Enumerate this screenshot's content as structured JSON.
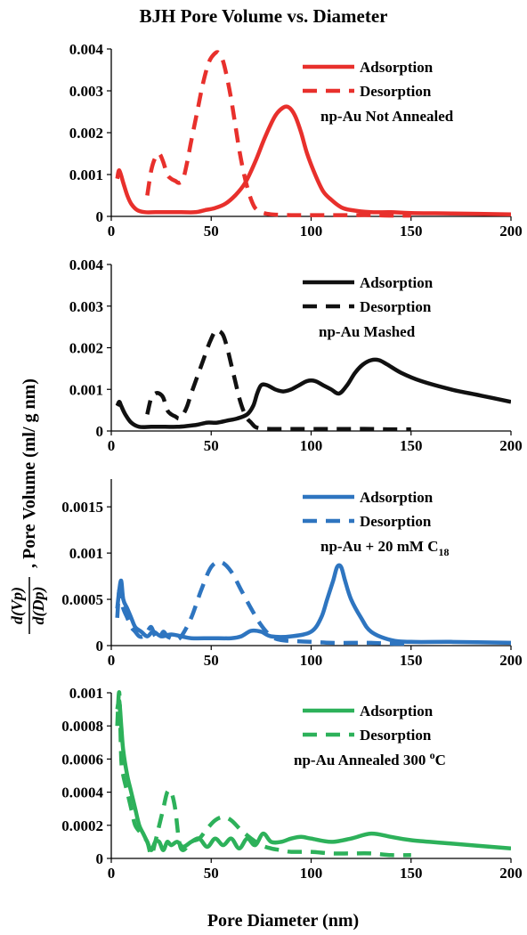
{
  "figure": {
    "title": "BJH Pore Volume vs. Diameter",
    "xlabel": "Pore Diameter (nm)",
    "ylabel_frac_num": "d(Vp)",
    "ylabel_frac_den": "d(Dp)",
    "ylabel_rest": ", Pore Volume (ml/ g nm)"
  },
  "chart_data": [
    {
      "type": "line",
      "annotation": "np-Au Not Annealed",
      "color": "#e8302c",
      "xlim": [
        0,
        200
      ],
      "ylim": [
        0,
        0.004
      ],
      "xticks": [
        0,
        50,
        100,
        150,
        200
      ],
      "yticks": [
        0,
        0.001,
        0.002,
        0.003,
        0.004
      ],
      "ytick_labels": [
        "0",
        "0.001",
        "0.002",
        "0.003",
        "0.004"
      ],
      "legend_position": "top-right",
      "series": [
        {
          "name": "Adsorption",
          "style": "solid",
          "x": [
            3,
            4,
            6,
            8,
            10,
            13,
            17,
            22,
            28,
            35,
            42,
            47,
            52,
            57,
            62,
            67,
            72,
            77,
            82,
            86,
            89,
            92,
            95,
            98,
            102,
            106,
            110,
            115,
            120,
            130,
            140,
            150,
            170,
            200
          ],
          "y": [
            0.0009,
            0.0011,
            0.0008,
            0.0005,
            0.0003,
            0.00015,
            0.0001,
            0.0001,
            0.0001,
            0.0001,
            0.0001,
            0.00015,
            0.0002,
            0.0003,
            0.0005,
            0.0008,
            0.0013,
            0.0019,
            0.0024,
            0.0026,
            0.0026,
            0.0024,
            0.002,
            0.0015,
            0.001,
            0.0006,
            0.0004,
            0.00022,
            0.00015,
            0.0001,
            0.0001,
            8e-05,
            7e-05,
            5e-05
          ]
        },
        {
          "name": "Desorption",
          "style": "dashed",
          "x": [
            18,
            20,
            22,
            24,
            26,
            28,
            30,
            32,
            34,
            36,
            38,
            40,
            43,
            46,
            49,
            52,
            54,
            56,
            58,
            60,
            62,
            64,
            66,
            68,
            70,
            72,
            75,
            80,
            90,
            100,
            110,
            120,
            130,
            140,
            150
          ],
          "y": [
            0.0005,
            0.0011,
            0.0014,
            0.0015,
            0.0013,
            0.001,
            0.0009,
            0.00085,
            0.0008,
            0.0009,
            0.0013,
            0.0018,
            0.0025,
            0.0032,
            0.0037,
            0.0039,
            0.0039,
            0.0037,
            0.0033,
            0.0028,
            0.0022,
            0.0016,
            0.0011,
            0.0007,
            0.0004,
            0.0002,
            0.0001,
            5e-05,
            3e-05,
            3e-05,
            3e-05,
            3e-05,
            3e-05,
            2e-05,
            2e-05
          ]
        }
      ]
    },
    {
      "type": "line",
      "annotation": "np-Au Mashed",
      "color": "#111111",
      "xlim": [
        0,
        200
      ],
      "ylim": [
        0,
        0.004
      ],
      "xticks": [
        0,
        50,
        100,
        150,
        200
      ],
      "yticks": [
        0,
        0.001,
        0.002,
        0.003,
        0.004
      ],
      "ytick_labels": [
        "0",
        "0.001",
        "0.002",
        "0.003",
        "0.004"
      ],
      "legend_position": "top-right",
      "series": [
        {
          "name": "Adsorption",
          "style": "solid",
          "x": [
            3,
            4,
            5,
            7,
            10,
            14,
            20,
            27,
            33,
            38,
            43,
            48,
            53,
            58,
            63,
            68,
            71,
            73,
            75,
            78,
            82,
            86,
            90,
            94,
            98,
            102,
            106,
            110,
            114,
            118,
            122,
            126,
            130,
            134,
            138,
            145,
            155,
            170,
            185,
            200
          ],
          "y": [
            0.0006,
            0.0007,
            0.0006,
            0.0004,
            0.0002,
            0.0001,
            0.0001,
            0.0001,
            0.0001,
            0.00012,
            0.00015,
            0.0002,
            0.0002,
            0.00025,
            0.0003,
            0.0004,
            0.0006,
            0.0009,
            0.0011,
            0.0011,
            0.001,
            0.00095,
            0.001,
            0.0011,
            0.0012,
            0.0012,
            0.0011,
            0.001,
            0.0009,
            0.0011,
            0.0014,
            0.0016,
            0.0017,
            0.0017,
            0.0016,
            0.0014,
            0.0012,
            0.001,
            0.00085,
            0.0007
          ]
        },
        {
          "name": "Desorption",
          "style": "dashed",
          "x": [
            18,
            20,
            22,
            24,
            26,
            28,
            30,
            32,
            34,
            36,
            38,
            40,
            43,
            46,
            49,
            52,
            54,
            56,
            58,
            60,
            62,
            64,
            66,
            68,
            70,
            72,
            75,
            80,
            90,
            100,
            110,
            120,
            130,
            140,
            150
          ],
          "y": [
            0.0004,
            0.0008,
            0.0009,
            0.0009,
            0.0008,
            0.0005,
            0.0004,
            0.00035,
            0.0003,
            0.0004,
            0.0006,
            0.0009,
            0.0013,
            0.0017,
            0.0021,
            0.0024,
            0.0024,
            0.0023,
            0.002,
            0.0016,
            0.0012,
            0.0008,
            0.0005,
            0.0003,
            0.0002,
            0.0001,
            6e-05,
            5e-05,
            5e-05,
            5e-05,
            5e-05,
            5e-05,
            5e-05,
            4e-05,
            4e-05
          ]
        }
      ]
    },
    {
      "type": "line",
      "annotation": "np-Au + 20 mM C",
      "annotation_sub": "18",
      "color": "#2e75c0",
      "xlim": [
        0,
        200
      ],
      "ylim": [
        0,
        0.0018
      ],
      "xticks": [
        0,
        50,
        100,
        150,
        200
      ],
      "yticks": [
        0,
        0.0005,
        0.001,
        0.0015
      ],
      "ytick_labels": [
        "0",
        "0.0005",
        "0.001",
        "0.0015"
      ],
      "legend_position": "top-right",
      "series": [
        {
          "name": "Adsorption",
          "style": "solid",
          "x": [
            3,
            4,
            5,
            6,
            8,
            10,
            12,
            15,
            18,
            21,
            25,
            30,
            35,
            40,
            50,
            60,
            65,
            70,
            75,
            80,
            90,
            100,
            105,
            108,
            111,
            113,
            115,
            117,
            120,
            125,
            130,
            140,
            150,
            170,
            200
          ],
          "y": [
            0.0004,
            0.0006,
            0.0007,
            0.0005,
            0.0004,
            0.0003,
            0.0002,
            0.00015,
            0.0001,
            0.00015,
            0.0001,
            0.00012,
            0.0001,
            8e-05,
            8e-05,
            8e-05,
            0.0001,
            0.00016,
            0.00015,
            0.0001,
            0.0001,
            0.00015,
            0.0003,
            0.0005,
            0.0007,
            0.00085,
            0.00085,
            0.0007,
            0.0005,
            0.0003,
            0.00015,
            6e-05,
            4e-05,
            4e-05,
            3e-05
          ]
        },
        {
          "name": "Desorption",
          "style": "dashed",
          "x": [
            3,
            4,
            5,
            6,
            8,
            10,
            12,
            14,
            16,
            18,
            20,
            22,
            24,
            26,
            28,
            30,
            32,
            35,
            40,
            45,
            50,
            55,
            60,
            65,
            70,
            75,
            80,
            85,
            90,
            100,
            110,
            120,
            130,
            140,
            150
          ],
          "y": [
            0.0003,
            0.0006,
            0.0005,
            0.0004,
            0.0003,
            0.0002,
            0.00015,
            0.0001,
            0.0001,
            0.00015,
            0.0002,
            0.0001,
            8e-05,
            0.00015,
            0.0001,
            8e-05,
            6e-05,
            0.0001,
            0.0003,
            0.0006,
            0.00085,
            0.0009,
            0.0008,
            0.0006,
            0.0004,
            0.00022,
            0.0001,
            6e-05,
            5e-05,
            4e-05,
            3e-05,
            3e-05,
            3e-05,
            2e-05,
            2e-05
          ]
        }
      ]
    },
    {
      "type": "line",
      "annotation": "np-Au Annealed 300 ",
      "annotation_sup": "o",
      "annotation_end": "C",
      "color": "#2db15a",
      "xlim": [
        0,
        200
      ],
      "ylim": [
        0,
        0.001
      ],
      "xticks": [
        0,
        50,
        100,
        150,
        200
      ],
      "yticks": [
        0,
        0.0002,
        0.0004,
        0.0006,
        0.0008,
        0.001
      ],
      "ytick_labels": [
        "0",
        "0.0002",
        "0.0004",
        "0.0006",
        "0.0008",
        "0.001"
      ],
      "legend_position": "top-right",
      "series": [
        {
          "name": "Adsorption",
          "style": "solid",
          "x": [
            3,
            4,
            5,
            6,
            8,
            10,
            12,
            14,
            16,
            18,
            20,
            22,
            24,
            26,
            28,
            30,
            33,
            36,
            40,
            44,
            48,
            52,
            56,
            60,
            64,
            68,
            72,
            76,
            80,
            85,
            90,
            95,
            100,
            110,
            120,
            130,
            140,
            150,
            170,
            200
          ],
          "y": [
            0.0009,
            0.00095,
            0.0008,
            0.00065,
            0.0005,
            0.0004,
            0.0003,
            0.0002,
            0.00015,
            0.0001,
            5e-05,
            0.0001,
            0.0001,
            5e-05,
            0.0001,
            8e-05,
            0.0001,
            7e-05,
            0.0001,
            0.00012,
            7e-05,
            0.00012,
            8e-05,
            0.00012,
            6e-05,
            0.00012,
            8e-05,
            0.00015,
            0.0001,
            0.0001,
            0.00012,
            0.00013,
            0.00012,
            0.0001,
            0.00012,
            0.00015,
            0.00013,
            0.00011,
            9e-05,
            6e-05
          ]
        },
        {
          "name": "Desorption",
          "style": "dashed",
          "x": [
            3,
            4,
            5,
            6,
            8,
            10,
            12,
            15,
            18,
            20,
            22,
            24,
            26,
            28,
            30,
            32,
            34,
            36,
            40,
            44,
            48,
            52,
            56,
            60,
            65,
            70,
            75,
            80,
            85,
            90,
            100,
            110,
            120,
            130,
            140,
            150
          ],
          "y": [
            0.0008,
            0.001,
            0.0006,
            0.0005,
            0.0004,
            0.0003,
            0.0002,
            0.00015,
            0.0001,
            2e-05,
            0.0001,
            0.0002,
            0.0003,
            0.0004,
            0.0004,
            0.0003,
            0.0001,
            5e-05,
            0.0001,
            0.00012,
            0.00018,
            0.00023,
            0.00025,
            0.00023,
            0.00017,
            0.00012,
            8e-05,
            6e-05,
            5e-05,
            4e-05,
            4e-05,
            3e-05,
            3e-05,
            3e-05,
            2e-05,
            2e-05
          ]
        }
      ]
    }
  ]
}
